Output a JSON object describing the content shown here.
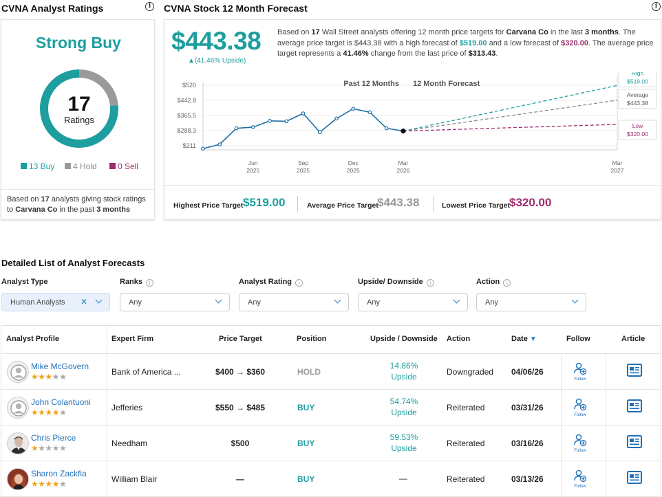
{
  "ratings": {
    "title": "CVNA Analyst Ratings",
    "consensus": "Strong Buy",
    "total": "17",
    "total_label": "Ratings",
    "buy_count": 13,
    "hold_count": 4,
    "sell_count": 0,
    "buy_label": "13 Buy",
    "hold_label": "4 Hold",
    "sell_label": "0 Sell",
    "note_prefix": "Based on ",
    "note_count": "17",
    "note_mid": " analysts giving stock ratings to ",
    "note_company": "Carvana Co",
    "note_mid2": " in the past ",
    "note_period": "3 months",
    "colors": {
      "buy": "#1e9e9e",
      "hold": "#9a9a9a",
      "sell": "#9b2d6f",
      "accent": "#f28c28"
    }
  },
  "forecast": {
    "title": "CVNA Stock 12 Month Forecast",
    "avg_price": "$443.38",
    "upside": "▲(41.46% Upside)",
    "summary": {
      "p1": "Based on ",
      "analysts": "17",
      "p2": " Wall Street analysts offering 12 month price targets for ",
      "company": "Carvana Co",
      "p3": " in the last ",
      "period": "3 months",
      "p4": ". The average price target is $443.38 with a high forecast of ",
      "high": "$519.00",
      "p5": " and a low forecast of ",
      "low": "$320.00",
      "p6": ". The average price target represents a ",
      "change": "41.46%",
      "p7": " change from the last price of ",
      "last": "$313.43",
      "p8": "."
    },
    "past_label": "Past 12 Months",
    "forecast_label": "12 Month Forecast",
    "high_tag": {
      "label": "High",
      "value": "$519.00"
    },
    "avg_tag": {
      "label": "Average",
      "value": "$443.38"
    },
    "low_tag": {
      "label": "Low",
      "value": "$320.00"
    },
    "highest_label": "Highest Price Target",
    "highest_value": "$519.00",
    "average_label": "Average Price Target",
    "average_value": "$443.38",
    "lowest_label": "Lowest Price Target",
    "lowest_value": "$320.00"
  },
  "chart_data": {
    "type": "line",
    "y_ticks": [
      "$520",
      "$442.8",
      "$365.5",
      "$288.3",
      "$211"
    ],
    "y_tick_values": [
      520,
      442.8,
      365.5,
      288.3,
      211
    ],
    "ylim": [
      211,
      520
    ],
    "x_ticks": [
      {
        "month": "Jun",
        "year": "2025"
      },
      {
        "month": "Sep",
        "year": "2025"
      },
      {
        "month": "Dec",
        "year": "2025"
      },
      {
        "month": "Mar",
        "year": "2026"
      },
      {
        "month": "Mar",
        "year": "2027"
      }
    ],
    "x_tick_index": [
      3,
      6,
      9,
      12,
      24
    ],
    "series": [
      {
        "name": "",
        "values": [
          196,
          218,
          300,
          306,
          338,
          336,
          376,
          280,
          350,
          400,
          382,
          300,
          286
        ]
      }
    ],
    "forecast": {
      "start": 286,
      "high": 519,
      "average": 443.38,
      "low": 320,
      "end_index": 24
    },
    "colors": {
      "price": "#1d6fa5",
      "high": "#1e9e9e",
      "average": "#8a8a8a",
      "low": "#9b2d6f"
    }
  },
  "details": {
    "title": "Detailed List of Analyst Forecasts",
    "filters": [
      {
        "label": "Analyst Type",
        "value": "Human Analysts",
        "info": false,
        "selected": true
      },
      {
        "label": "Ranks",
        "value": "Any",
        "info": true,
        "selected": false
      },
      {
        "label": "Analyst Rating",
        "value": "Any",
        "info": true,
        "selected": false
      },
      {
        "label": "Upside/ Downside",
        "value": "Any",
        "info": true,
        "selected": false
      },
      {
        "label": "Action",
        "value": "Any",
        "info": true,
        "selected": false
      }
    ],
    "headers": {
      "profile": "Analyst Profile",
      "firm": "Expert Firm",
      "target": "Price Target",
      "position": "Position",
      "upside": "Upside / Downside",
      "action": "Action",
      "date": "Date",
      "follow": "Follow",
      "article": "Article"
    },
    "follow_label": "Follow",
    "rows": [
      {
        "name": "Mike McGovern",
        "stars": 2.5,
        "firm": "Bank of America ...",
        "target": "$400 → $360",
        "position": "HOLD",
        "upside": "14.86%",
        "upside_label": "Upside",
        "action": "Downgraded",
        "date": "04/06/26",
        "avatar": "placeholder"
      },
      {
        "name": "John Colantuoni",
        "stars": 4,
        "firm": "Jefferies",
        "target": "$550 → $485",
        "position": "BUY",
        "upside": "54.74%",
        "upside_label": "Upside",
        "action": "Reiterated",
        "date": "03/31/26",
        "avatar": "placeholder"
      },
      {
        "name": "Chris Pierce",
        "stars": 1,
        "firm": "Needham",
        "target": "$500",
        "position": "BUY",
        "upside": "59.53%",
        "upside_label": "Upside",
        "action": "Reiterated",
        "date": "03/16/26",
        "avatar": "photo-man"
      },
      {
        "name": "Sharon Zackfia",
        "stars": 3.5,
        "firm": "William Blair",
        "target": "—",
        "position": "BUY",
        "upside": "—",
        "upside_label": "",
        "action": "Reiterated",
        "date": "03/13/26",
        "avatar": "photo-woman"
      }
    ]
  }
}
